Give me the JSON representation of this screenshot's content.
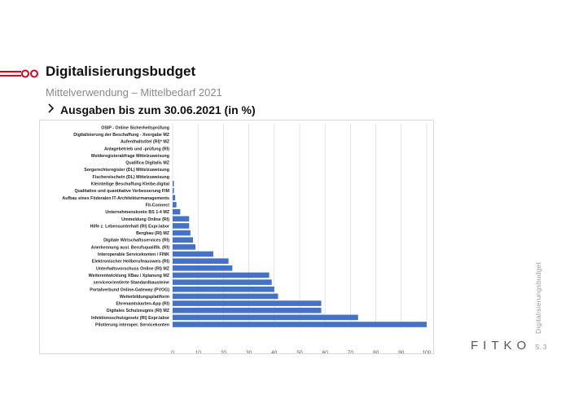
{
  "slide": {
    "title": "Digitalisierungsbudget",
    "subtitle": "Mittelverwendung – Mittelbedarf 2021",
    "section": "Ausgaben bis zum 30.06.2021 (in %)",
    "side_label": "Digitalisierungsbudget",
    "brand": "FITKO",
    "page": "S. 3"
  },
  "colors": {
    "accent": "#e2001a",
    "bar": "#4472c4",
    "grid": "#d9d9d9"
  },
  "chart_data": {
    "type": "bar",
    "orientation": "horizontal",
    "categories": [
      "OSIP - Online Sicherheitsprüfung",
      "Digitalisierung der Beschaffung - Xvergabe MZ",
      "Aufenthaltstitel (RI)* MZ",
      "Anlagebetrieb und -prüfung (RI)",
      "Melderegisterabfrage Mittelzuweisung",
      "Qualifica Digitalis MZ",
      "Sorgerechtsregister (DL) Mittelzuweisung",
      "Fischereischein (DL) Mittelzuweisung",
      "Kleinteilige Beschaffung Kleibe.digital",
      "Qualitative und quantitative Verbesserung FIM",
      "Aufbau eines Föderalen IT-Architekturmanagements",
      "Fit-Connect",
      "Unternehmenskonto BS 1-4 MZ",
      "Ummeldung Online (RI)",
      "Hilfe z. Lebensunterhalt (RI) Expr.labor",
      "Bergbau (RI) MZ",
      "Digitale Wirtschaftsservices (RI)",
      "Anerkennung ausl. Berufsqualifik. (RI)",
      "Interoperable Servicekonten / FINK",
      "Elektronischer Heilberufeausweis (RI)",
      "Unterhaltsvorschuss Online (RI) MZ",
      "Weiterentwicklung XBau / Xplanung MZ",
      "serviceorientierte Standardbausteine",
      "Portalverbund Online-Gateway (PVOG)",
      "Weiterbildungsplattform",
      "Ehrenamtskarten-App (RI)",
      "Digitales Schulzeugnis (RI) MZ",
      "Infektionsschutzgesetz (RI) Expr.labor",
      "Pilotierung interoper. Servicekonten"
    ],
    "values": [
      0,
      0,
      0,
      0,
      0,
      0,
      0,
      0,
      0.5,
      0.5,
      1,
      1.5,
      3,
      6.5,
      6.5,
      7,
      8,
      9,
      16,
      22,
      23.5,
      38,
      39,
      40,
      41.5,
      58.5,
      58.5,
      73,
      100
    ],
    "xlim": [
      0,
      100
    ],
    "xticks": [
      0,
      10,
      20,
      30,
      40,
      50,
      60,
      70,
      80,
      90,
      100
    ],
    "grid": true
  }
}
